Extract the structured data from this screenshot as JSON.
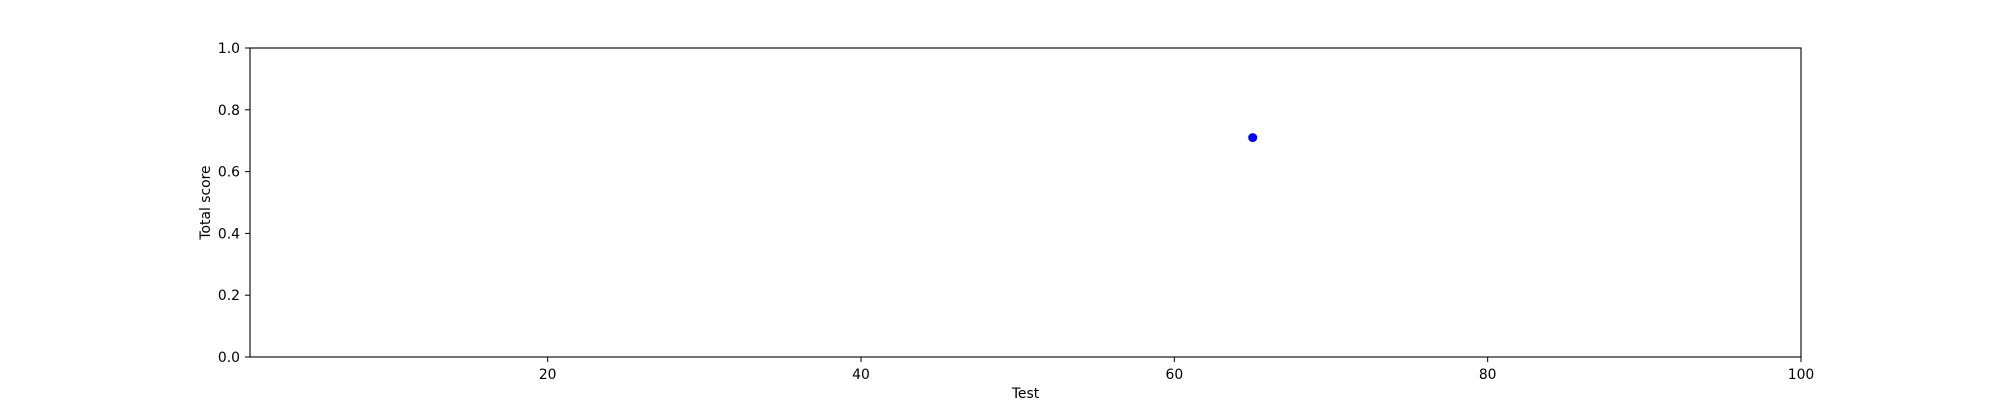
{
  "chart_data": {
    "type": "scatter",
    "title": "",
    "xlabel": "Test",
    "ylabel": "Total score",
    "xlim": [
      1,
      100
    ],
    "ylim": [
      0.0,
      1.0
    ],
    "x_ticks": [
      20,
      40,
      60,
      80,
      100
    ],
    "y_ticks": [
      0.0,
      0.2,
      0.4,
      0.6,
      0.8,
      1.0
    ],
    "x_tick_labels": [
      "20",
      "40",
      "60",
      "80",
      "100"
    ],
    "y_tick_labels": [
      "0.0",
      "0.2",
      "0.4",
      "0.6",
      "0.8",
      "1.0"
    ],
    "grid": false,
    "legend": "none",
    "series": [
      {
        "color": "#0000ff",
        "points": [
          {
            "x": 65,
            "y": 0.71
          }
        ]
      }
    ]
  }
}
